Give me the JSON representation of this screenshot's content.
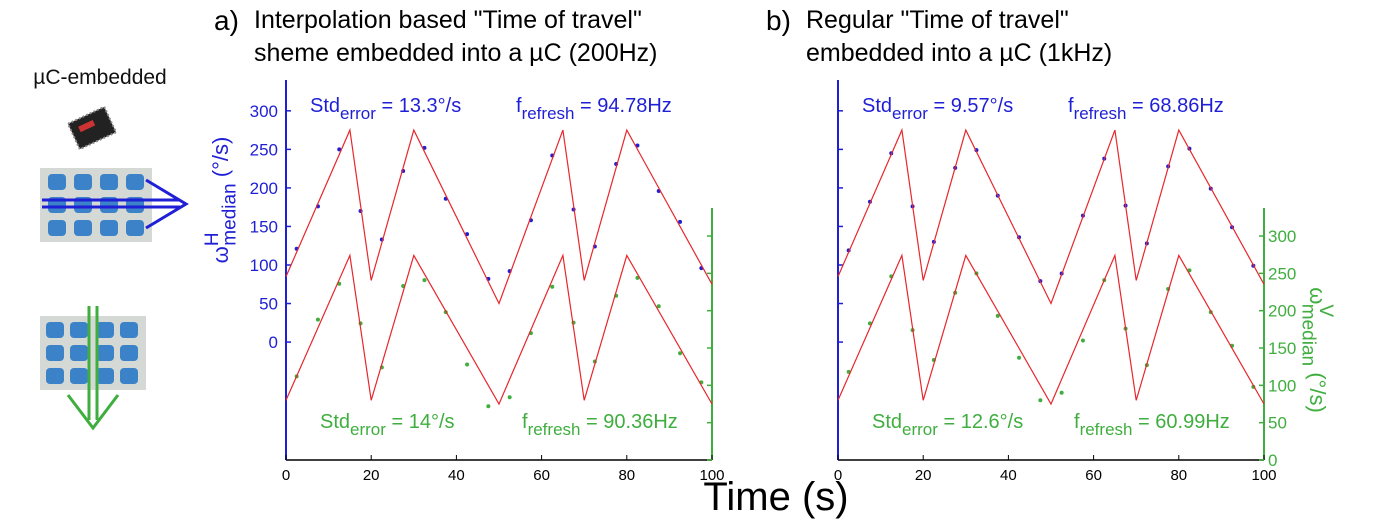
{
  "figure": {
    "xlabel": "Time (s)",
    "icon_label": "µC-embedded"
  },
  "chart_data": [
    {
      "type": "scatter",
      "panel_label": "a)",
      "title_lines": [
        "Interpolation based \"Time of travel\"",
        "sheme embedded into a µC (200Hz)"
      ],
      "ylabel": {
        "main": "ω",
        "sup": "H",
        "sub": "median",
        "rest": " (°/s)",
        "color": "#1f1fd6"
      },
      "xlim": [
        0,
        100
      ],
      "xticks": [
        0,
        20,
        40,
        60,
        80,
        100
      ],
      "ylim": [
        -153,
        340
      ],
      "yticks": [
        0,
        50,
        100,
        150,
        200,
        250,
        300
      ],
      "ytick_labels": true,
      "y2lim": [
        0,
        509
      ],
      "y2ticks": [
        0,
        50,
        100,
        150,
        200,
        250,
        300
      ],
      "y2tick_labels": false,
      "y_color": "#1f1fd6",
      "y2_color": "#3fae3f",
      "annotations": [
        {
          "main": "Std",
          "sub": "error",
          "rest": " = 13.3°/s",
          "color": "#1f1fd6"
        },
        {
          "main": "f",
          "sub": "refresh",
          "rest": " = 94.78Hz",
          "color": "#1f1fd6"
        },
        {
          "main": "Std",
          "sub": "error",
          "rest": " = 14°/s",
          "color": "#3fae3f"
        },
        {
          "main": "f",
          "sub": "refresh",
          "rest": " = 90.36Hz",
          "color": "#3fae3f"
        }
      ],
      "series": [
        {
          "kind": "markers",
          "color": "#1f1fd6",
          "x": [
            2.5,
            7.5,
            12.5,
            17.5,
            22.5,
            27.5,
            32.5,
            37.5,
            42.5,
            47.5,
            52.5,
            57.5,
            62.5,
            67.5,
            72.5,
            77.5,
            82.5,
            87.5,
            92.5,
            97.5
          ],
          "values": [
            121,
            176,
            250,
            170,
            133,
            222,
            252,
            186,
            140,
            82,
            92,
            158,
            242,
            172,
            124,
            231,
            255,
            196,
            156,
            96
          ]
        },
        {
          "kind": "line",
          "color": "#e8262b",
          "x": [
            0,
            15,
            20,
            30,
            50,
            65,
            70,
            80,
            100
          ],
          "values": [
            85,
            275,
            80,
            275,
            50,
            275,
            80,
            275,
            75
          ]
        },
        {
          "kind": "markers",
          "color": "#3fae3f",
          "axis": "y2",
          "x": [
            2.5,
            7.5,
            12.5,
            17.5,
            22.5,
            27.5,
            32.5,
            37.5,
            42.5,
            47.5,
            52.5,
            57.5,
            62.5,
            67.5,
            72.5,
            77.5,
            82.5,
            87.5,
            92.5,
            97.5
          ],
          "values": [
            112,
            188,
            236,
            183,
            124,
            233,
            241,
            198,
            128,
            72,
            84,
            170,
            232,
            184,
            132,
            220,
            244,
            206,
            143,
            104
          ]
        },
        {
          "kind": "line",
          "color": "#e8262b",
          "axis": "y2",
          "x": [
            0,
            15,
            20,
            30,
            50,
            65,
            70,
            80,
            100
          ],
          "values": [
            80,
            274,
            80,
            274,
            75,
            274,
            80,
            274,
            75
          ]
        }
      ]
    },
    {
      "type": "scatter",
      "panel_label": "b)",
      "title_lines": [
        "Regular \"Time of travel\"",
        "embedded into a µC (1kHz)"
      ],
      "ylabel2": {
        "main": "ω",
        "sup": "V",
        "sub": "median",
        "rest": " (°/s)",
        "color": "#3fae3f"
      },
      "xlim": [
        0,
        100
      ],
      "xticks": [
        0,
        20,
        40,
        60,
        80,
        100
      ],
      "ylim": [
        -153,
        340
      ],
      "yticks": [
        0,
        50,
        100,
        150,
        200,
        250,
        300
      ],
      "ytick_labels": false,
      "y2lim": [
        0,
        509
      ],
      "y2ticks": [
        0,
        50,
        100,
        150,
        200,
        250,
        300
      ],
      "y2tick_labels": true,
      "y_color": "#1f1fd6",
      "y2_color": "#3fae3f",
      "annotations": [
        {
          "main": "Std",
          "sub": "error",
          "rest": " = 9.57°/s",
          "color": "#1f1fd6"
        },
        {
          "main": "f",
          "sub": "refresh",
          "rest": " = 68.86Hz",
          "color": "#1f1fd6"
        },
        {
          "main": "Std",
          "sub": "error",
          "rest": " = 12.6°/s",
          "color": "#3fae3f"
        },
        {
          "main": "f",
          "sub": "refresh",
          "rest": " = 60.99Hz",
          "color": "#3fae3f"
        }
      ],
      "series": [
        {
          "kind": "markers",
          "color": "#1f1fd6",
          "x": [
            2.5,
            7.5,
            12.5,
            17.5,
            22.5,
            27.5,
            32.5,
            37.5,
            42.5,
            47.5,
            52.5,
            57.5,
            62.5,
            67.5,
            72.5,
            77.5,
            82.5,
            87.5,
            92.5,
            97.5
          ],
          "values": [
            119,
            182,
            245,
            176,
            130,
            226,
            249,
            190,
            136,
            79,
            89,
            164,
            238,
            177,
            128,
            228,
            251,
            199,
            149,
            99
          ]
        },
        {
          "kind": "line",
          "color": "#e8262b",
          "x": [
            0,
            15,
            20,
            30,
            50,
            65,
            70,
            80,
            100
          ],
          "values": [
            85,
            275,
            80,
            275,
            50,
            275,
            80,
            275,
            75
          ]
        },
        {
          "kind": "markers",
          "color": "#3fae3f",
          "axis": "y2",
          "x": [
            2.5,
            7.5,
            12.5,
            17.5,
            22.5,
            27.5,
            32.5,
            37.5,
            42.5,
            47.5,
            52.5,
            57.5,
            62.5,
            67.5,
            72.5,
            77.5,
            82.5,
            87.5,
            92.5,
            97.5
          ],
          "values": [
            118,
            183,
            246,
            174,
            134,
            224,
            250,
            193,
            137,
            80,
            90,
            160,
            241,
            176,
            127,
            229,
            254,
            198,
            153,
            98
          ]
        },
        {
          "kind": "line",
          "color": "#e8262b",
          "axis": "y2",
          "x": [
            0,
            15,
            20,
            30,
            50,
            65,
            70,
            80,
            100
          ],
          "values": [
            80,
            274,
            80,
            274,
            75,
            274,
            80,
            274,
            75
          ]
        }
      ]
    }
  ]
}
